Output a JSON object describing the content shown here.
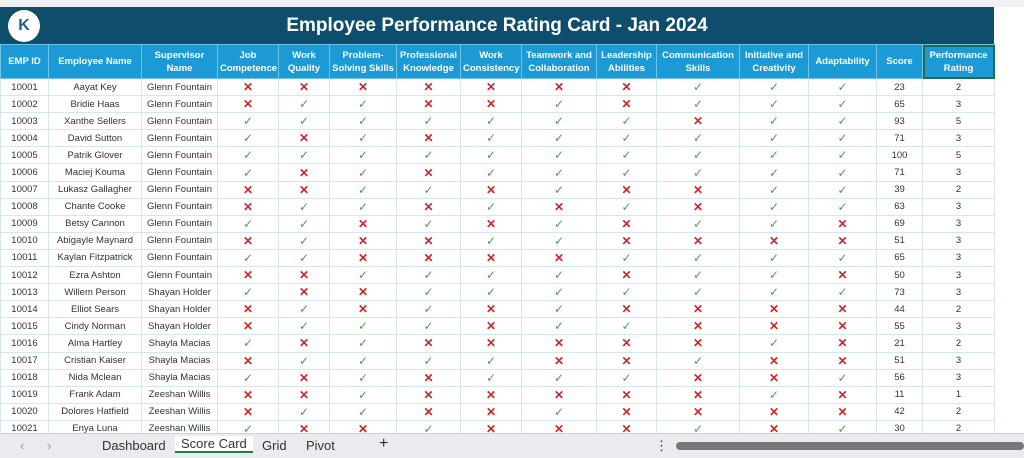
{
  "title": "Employee Performance Rating Card - Jan 2024",
  "logo_text": "K",
  "headers": [
    "EMP ID",
    "Employee Name",
    "Supervisor Name",
    "Job Competence",
    "Work Quality",
    "Problem-Solving Skills",
    "Professional Knowledge",
    "Work Consistency",
    "Teamwork and Collaboration",
    "Leadership Abilities",
    "Communication Skills",
    "Initiative and Creativity",
    "Adaptability",
    "Score",
    "Performance Rating"
  ],
  "marks": {
    "check": "✓",
    "cross": "✕"
  },
  "colors": {
    "title_bg": "#0e4d6b",
    "header_bg": "#1b9ad6",
    "check": "#4aa04a",
    "cross": "#d0242b"
  },
  "rows": [
    {
      "id": "10001",
      "name": "Aayat Key",
      "supervisor": "Glenn Fountain",
      "ratings": "0000000111",
      "score": "23",
      "rating": "2"
    },
    {
      "id": "10002",
      "name": "Bridie Haas",
      "supervisor": "Glenn Fountain",
      "ratings": "0110010111",
      "score": "65",
      "rating": "3"
    },
    {
      "id": "10003",
      "name": "Xanthe Sellers",
      "supervisor": "Glenn Fountain",
      "ratings": "1111111011",
      "score": "93",
      "rating": "5"
    },
    {
      "id": "10004",
      "name": "David Sutton",
      "supervisor": "Glenn Fountain",
      "ratings": "1010111111",
      "score": "71",
      "rating": "3"
    },
    {
      "id": "10005",
      "name": "Patrik Glover",
      "supervisor": "Glenn Fountain",
      "ratings": "1111111111",
      "score": "100",
      "rating": "5"
    },
    {
      "id": "10006",
      "name": "Maciej Kouma",
      "supervisor": "Glenn Fountain",
      "ratings": "1010111111",
      "score": "71",
      "rating": "3"
    },
    {
      "id": "10007",
      "name": "Lukasz Gallagher",
      "supervisor": "Glenn Fountain",
      "ratings": "0011010011",
      "score": "39",
      "rating": "2"
    },
    {
      "id": "10008",
      "name": "Chante Cooke",
      "supervisor": "Glenn Fountain",
      "ratings": "0110101011",
      "score": "63",
      "rating": "3"
    },
    {
      "id": "10009",
      "name": "Betsy Cannon",
      "supervisor": "Glenn Fountain",
      "ratings": "1101010110",
      "score": "69",
      "rating": "3"
    },
    {
      "id": "10010",
      "name": "Abigayle Maynard",
      "supervisor": "Glenn Fountain",
      "ratings": "0100110000",
      "score": "51",
      "rating": "3"
    },
    {
      "id": "10011",
      "name": "Kaylan Fitzpatrick",
      "supervisor": "Glenn Fountain",
      "ratings": "1100001111",
      "score": "65",
      "rating": "3"
    },
    {
      "id": "10012",
      "name": "Ezra Ashton",
      "supervisor": "Glenn Fountain",
      "ratings": "0011110110",
      "score": "50",
      "rating": "3"
    },
    {
      "id": "10013",
      "name": "Willem Person",
      "supervisor": "Shayan Holder",
      "ratings": "1001111111",
      "score": "73",
      "rating": "3"
    },
    {
      "id": "10014",
      "name": "Elliot Sears",
      "supervisor": "Shayan Holder",
      "ratings": "0101010000",
      "score": "44",
      "rating": "2"
    },
    {
      "id": "10015",
      "name": "Cindy Norman",
      "supervisor": "Shayan Holder",
      "ratings": "0111011000",
      "score": "55",
      "rating": "3"
    },
    {
      "id": "10016",
      "name": "Alma Hartley",
      "supervisor": "Shayla Macias",
      "ratings": "1010000010",
      "score": "21",
      "rating": "2"
    },
    {
      "id": "10017",
      "name": "Cristian Kaiser",
      "supervisor": "Shayla Macias",
      "ratings": "0111100100",
      "score": "51",
      "rating": "3"
    },
    {
      "id": "10018",
      "name": "Nida Mclean",
      "supervisor": "Shayla Macias",
      "ratings": "1010111001",
      "score": "56",
      "rating": "3"
    },
    {
      "id": "10019",
      "name": "Frank Adam",
      "supervisor": "Zeeshan Willis",
      "ratings": "0010000010",
      "score": "11",
      "rating": "1"
    },
    {
      "id": "10020",
      "name": "Dolores Hatfield",
      "supervisor": "Zeeshan Willis",
      "ratings": "0110010000",
      "score": "42",
      "rating": "2"
    },
    {
      "id": "10021",
      "name": "Enya Luna",
      "supervisor": "Zeeshan Willis",
      "ratings": "1001000101",
      "score": "30",
      "rating": "2"
    }
  ],
  "tabs": {
    "prev": "‹",
    "next": "›",
    "items": [
      "Dashboard",
      "Score Card",
      "Grid",
      "Pivot"
    ],
    "active": "Score Card",
    "add": "+",
    "more": "⋮"
  }
}
